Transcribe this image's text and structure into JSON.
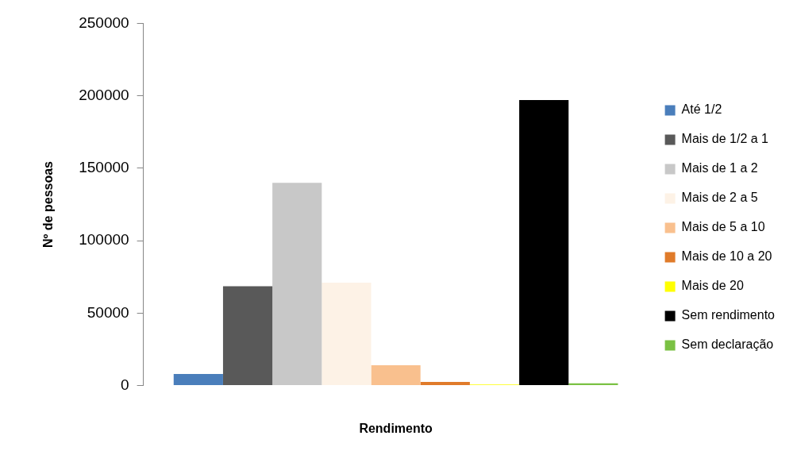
{
  "chart_data": {
    "type": "bar",
    "xlabel": "Rendimento",
    "ylabel": "Nº de pessoas",
    "categories": [
      null
    ],
    "ylim": [
      0,
      250000
    ],
    "yticks": [
      0,
      50000,
      100000,
      150000,
      200000,
      250000
    ],
    "grid": false,
    "legend": "right",
    "series": [
      {
        "name": "Até 1/2",
        "color": "#4a7ebb",
        "values": [
          8000
        ]
      },
      {
        "name": "Mais de 1/2 a 1",
        "color": "#595959",
        "values": [
          68500
        ]
      },
      {
        "name": "Mais de 1 a 2",
        "color": "#c8c8c8",
        "values": [
          140000
        ]
      },
      {
        "name": "Mais de 2 a 5",
        "color": "#fdf2e6",
        "values": [
          71000
        ]
      },
      {
        "name": "Mais de 5 a 10",
        "color": "#f9c08e",
        "values": [
          14000
        ]
      },
      {
        "name": "Mais de 10 a 20",
        "color": "#e07b2a",
        "values": [
          2500
        ]
      },
      {
        "name": "Mais de 20",
        "color": "#ffff00",
        "values": [
          800
        ]
      },
      {
        "name": "Sem rendimento",
        "color": "#000000",
        "values": [
          197000
        ]
      },
      {
        "name": "Sem declaração",
        "color": "#7ac143",
        "values": [
          1500
        ]
      }
    ]
  }
}
